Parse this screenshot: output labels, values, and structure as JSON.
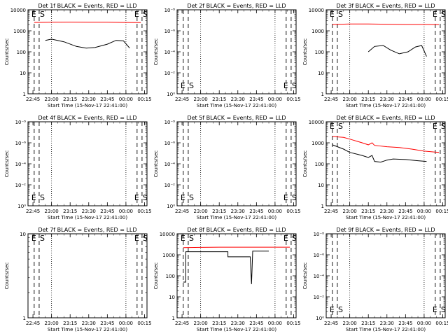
{
  "time_ticks": [
    "22:45",
    "23:00",
    "23:15",
    "23:30",
    "23:45",
    "00:00",
    "00:15"
  ],
  "xlabel": "Start Time (15-Nov-17 22:41:00)",
  "ylabel": "Counts/sec",
  "colors": {
    "events": "#000000",
    "lld": "#ff0000"
  },
  "chart_data": [
    {
      "type": "line",
      "title": "Det 1f BLACK = Events, RED = LLD",
      "yscale": "log",
      "ytick_labels": [
        "1",
        "10",
        "100",
        "1000",
        "10000"
      ],
      "ylim": [
        1,
        10000
      ],
      "markers": [
        {
          "label": "E",
          "x": "22:46"
        },
        {
          "label": "S",
          "x": "22:50"
        },
        {
          "label": "E",
          "x": "00:09"
        },
        {
          "label": "S",
          "x": "00:13"
        }
      ],
      "series": [
        {
          "color": "red",
          "x": [
            "22:46",
            "23:00",
            "23:15",
            "23:30",
            "23:45",
            "00:00",
            "00:12"
          ],
          "y": [
            2500,
            2550,
            2600,
            2580,
            2550,
            2500,
            2450
          ]
        },
        {
          "color": "black",
          "x": [
            "22:55",
            "23:00",
            "23:10",
            "23:20",
            "23:28",
            "23:35",
            "23:45",
            "23:52",
            "23:58",
            "00:03"
          ],
          "y": [
            350,
            400,
            300,
            180,
            150,
            160,
            230,
            350,
            330,
            150
          ]
        }
      ]
    },
    {
      "type": "line",
      "title": "Det 2f BLACK = Events, RED = LLD",
      "yscale": "log",
      "ytick_labels": [
        "10⁰",
        "10⁻²",
        "10⁻⁴",
        "10⁻⁶",
        "10⁻⁸"
      ],
      "markers": [
        {
          "label": "E",
          "x": "22:46"
        },
        {
          "label": "S",
          "x": "22:50"
        },
        {
          "label": "E",
          "x": "00:09"
        },
        {
          "label": "S",
          "x": "00:13"
        }
      ],
      "series": []
    },
    {
      "type": "line",
      "title": "Det 3f BLACK = Events, RED = LLD",
      "yscale": "log",
      "ytick_labels": [
        "1",
        "10",
        "100",
        "1000",
        "10000"
      ],
      "ylim": [
        1,
        10000
      ],
      "markers": [
        {
          "label": "E",
          "x": "22:46"
        },
        {
          "label": "S",
          "x": "22:50"
        },
        {
          "label": "E",
          "x": "00:09"
        },
        {
          "label": "S",
          "x": "00:13"
        }
      ],
      "series": [
        {
          "color": "red",
          "x": [
            "22:46",
            "23:00",
            "23:15",
            "23:30",
            "23:45",
            "00:00",
            "00:12"
          ],
          "y": [
            2000,
            2100,
            2100,
            2050,
            2000,
            2000,
            1950
          ]
        },
        {
          "color": "black",
          "x": [
            "23:15",
            "23:20",
            "23:27",
            "23:33",
            "23:40",
            "23:47",
            "23:53",
            "23:58",
            "00:02"
          ],
          "y": [
            100,
            180,
            200,
            120,
            80,
            100,
            170,
            200,
            60
          ]
        }
      ]
    },
    {
      "type": "line",
      "title": "Det 4f BLACK = Events, RED = LLD",
      "yscale": "log",
      "ytick_labels": [
        "10⁰",
        "10⁻²",
        "10⁻⁴",
        "10⁻⁶",
        "10⁻⁸"
      ],
      "markers": [
        {
          "label": "E",
          "x": "22:46"
        },
        {
          "label": "S",
          "x": "22:50"
        },
        {
          "label": "E",
          "x": "00:09"
        },
        {
          "label": "S",
          "x": "00:13"
        }
      ],
      "series": []
    },
    {
      "type": "line",
      "title": "Det 5f BLACK = Events, RED = LLD",
      "yscale": "log",
      "ytick_labels": [
        "10⁰",
        "10⁻²",
        "10⁻⁴",
        "10⁻⁶",
        "10⁻⁸"
      ],
      "markers": [
        {
          "label": "E",
          "x": "22:46"
        },
        {
          "label": "S",
          "x": "22:50"
        },
        {
          "label": "E",
          "x": "00:09"
        },
        {
          "label": "S",
          "x": "00:13"
        }
      ],
      "series": []
    },
    {
      "type": "line",
      "title": "Det 6f BLACK = Events, RED = LLD",
      "yscale": "log",
      "ytick_labels": [
        "1",
        "10",
        "100",
        "1000",
        "10000"
      ],
      "ylim": [
        1,
        10000
      ],
      "markers": [
        {
          "label": "E",
          "x": "22:46"
        },
        {
          "label": "S",
          "x": "22:50"
        },
        {
          "label": "E",
          "x": "00:09"
        },
        {
          "label": "S",
          "x": "00:13"
        }
      ],
      "series": [
        {
          "color": "red",
          "x": [
            "22:46",
            "22:55",
            "23:00",
            "23:10",
            "23:15",
            "23:18",
            "23:20",
            "23:30",
            "23:40",
            "23:50",
            "00:00",
            "00:12"
          ],
          "y": [
            2000,
            1800,
            1500,
            1000,
            800,
            1000,
            750,
            650,
            600,
            500,
            400,
            350
          ]
        },
        {
          "color": "black",
          "x": [
            "22:46",
            "22:55",
            "23:00",
            "23:10",
            "23:15",
            "23:18",
            "23:20",
            "23:25",
            "23:30",
            "23:35",
            "23:45",
            "23:55",
            "00:02"
          ],
          "y": [
            800,
            500,
            350,
            250,
            200,
            250,
            130,
            120,
            150,
            170,
            160,
            140,
            130
          ]
        }
      ]
    },
    {
      "type": "line",
      "title": "Det 7f BLACK = Events, RED = LLD",
      "yscale": "log",
      "ytick_labels": [
        "1",
        "10"
      ],
      "ylim": [
        1,
        10
      ],
      "markers": [
        {
          "label": "E",
          "x": "22:46"
        },
        {
          "label": "S",
          "x": "22:50"
        },
        {
          "label": "E",
          "x": "00:09"
        },
        {
          "label": "S",
          "x": "00:13"
        }
      ],
      "series": []
    },
    {
      "type": "line",
      "title": "Det 8f BLACK = Events, RED = LLD",
      "yscale": "log",
      "ytick_labels": [
        "1",
        "10",
        "100",
        "1000",
        "10000"
      ],
      "ylim": [
        1,
        10000
      ],
      "markers": [
        {
          "label": "E",
          "x": "22:46"
        },
        {
          "label": "S",
          "x": "22:50"
        },
        {
          "label": "E",
          "x": "00:09"
        },
        {
          "label": "S",
          "x": "00:13"
        }
      ],
      "series": [
        {
          "color": "red",
          "x": [
            "22:46",
            "23:00",
            "23:15",
            "23:30",
            "23:45",
            "00:00",
            "00:12"
          ],
          "y": [
            2200,
            2250,
            2300,
            2300,
            2300,
            2300,
            2300
          ]
        },
        {
          "color": "black",
          "x": [
            "22:46",
            "22:48",
            "22:48",
            "22:55",
            "23:22",
            "23:22",
            "23:40",
            "23:41",
            "23:42",
            "23:43",
            "23:44",
            "23:55"
          ],
          "y": [
            50,
            50,
            1400,
            1400,
            1400,
            800,
            800,
            40,
            1500,
            1500,
            1500,
            1500
          ]
        }
      ]
    },
    {
      "type": "line",
      "title": "Det 9f BLACK = Events, RED = LLD",
      "yscale": "log",
      "ytick_labels": [
        "10⁰",
        "10⁻²",
        "10⁻⁴",
        "10⁻⁶",
        "10⁻⁸"
      ],
      "markers": [
        {
          "label": "E",
          "x": "22:46"
        },
        {
          "label": "S",
          "x": "22:50"
        },
        {
          "label": "E",
          "x": "00:09"
        },
        {
          "label": "S",
          "x": "00:13"
        }
      ],
      "series": []
    }
  ]
}
